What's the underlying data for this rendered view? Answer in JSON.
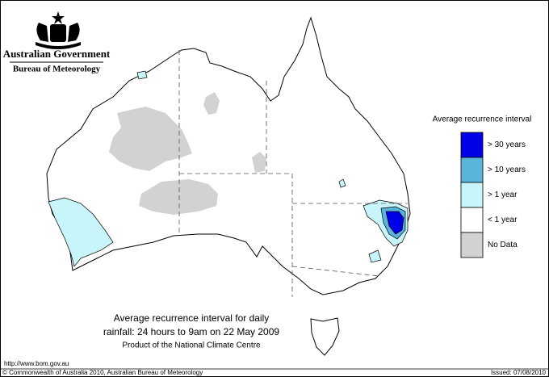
{
  "header": {
    "government": "Australian Government",
    "agency": "Bureau of Meteorology"
  },
  "legend": {
    "title": "Average recurrence interval",
    "items": [
      {
        "label": "> 30 years",
        "color": "#0000e6"
      },
      {
        "label": "> 10 years",
        "color": "#5ab4dc"
      },
      {
        "label": "> 1 year",
        "color": "#c8f5fa"
      },
      {
        "label": "< 1 year",
        "color": "#ffffff"
      },
      {
        "label": "No Data",
        "color": "#d2d2d2"
      }
    ]
  },
  "caption": {
    "line1": "Average recurrence interval for daily",
    "line2": "rainfall: 24 hours to 9am on 22 May 2009",
    "line3": "Product of the National Climate Centre"
  },
  "footer": {
    "url": "http://www.bom.gov.au",
    "copyright": "© Commonwealth of Australia 2010, Australian Bureau of Meteorology",
    "issued": "Issued: 07/08/2010"
  }
}
